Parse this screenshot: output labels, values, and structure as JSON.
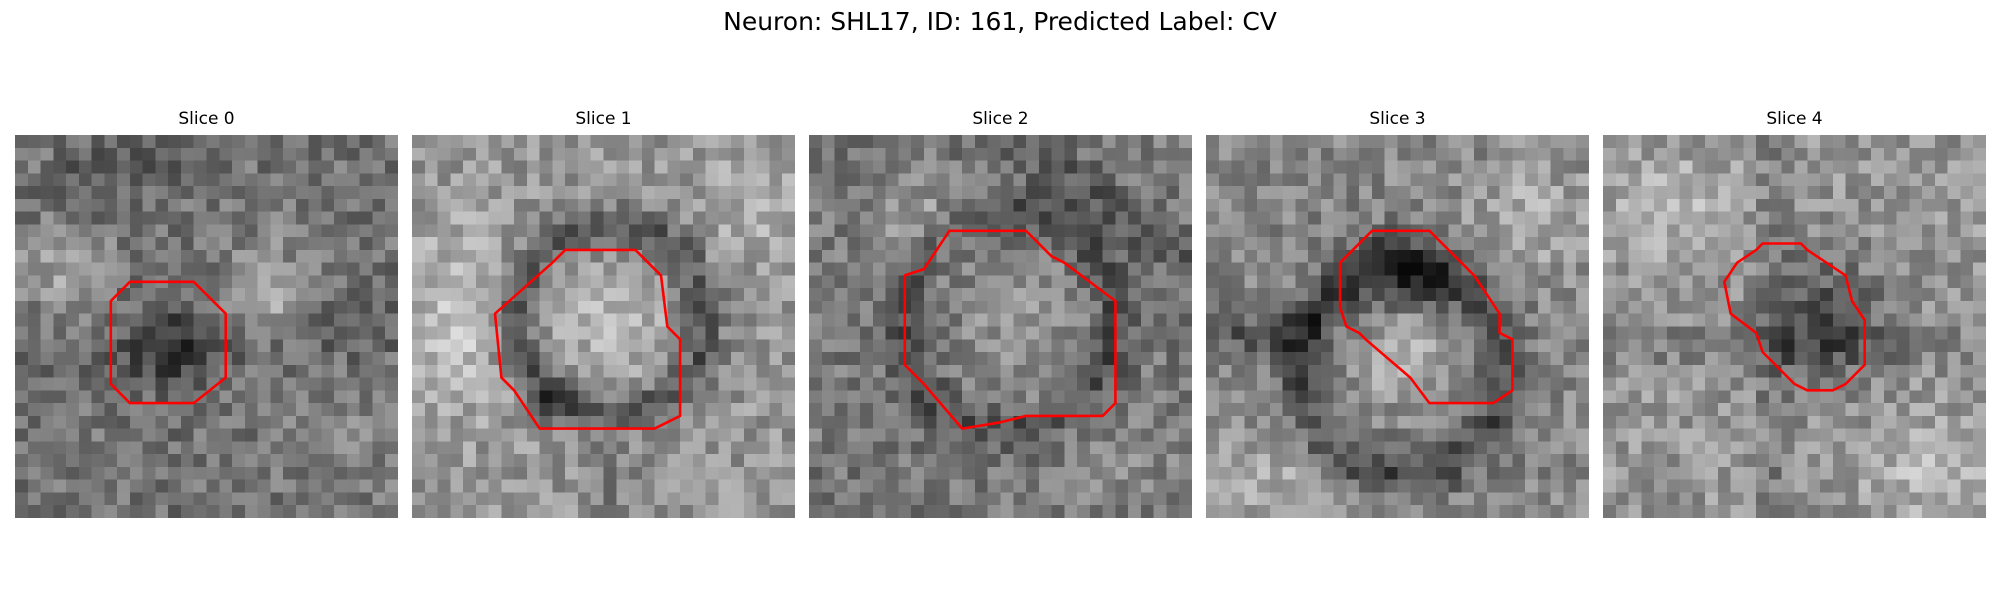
{
  "figure": {
    "title": "Neuron: SHL17, ID: 161, Predicted Label: CV"
  },
  "panels": [
    {
      "label": "Slice 0"
    },
    {
      "label": "Slice 1"
    },
    {
      "label": "Slice 2"
    },
    {
      "label": "Slice 3"
    },
    {
      "label": "Slice 4"
    }
  ],
  "colors": {
    "contour": "#ff0000",
    "background": "#ffffff"
  },
  "image": {
    "colormap": "grayscale",
    "grid": "30x30 pixels"
  }
}
